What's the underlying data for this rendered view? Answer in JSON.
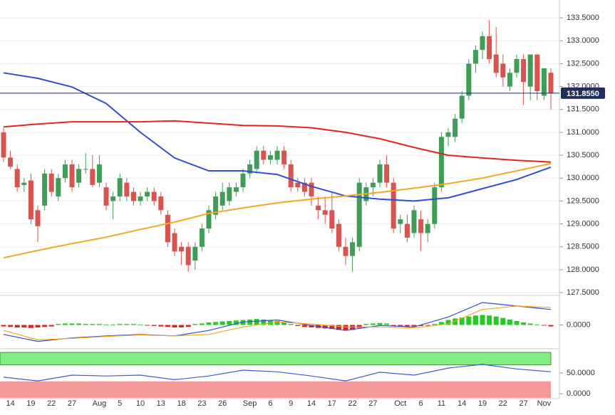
{
  "chart_data": {
    "type": "candlestick",
    "categories": [
      null,
      "14",
      null,
      null,
      "19",
      null,
      null,
      "22",
      null,
      null,
      "27",
      null,
      null,
      null,
      "Aug",
      null,
      null,
      "5",
      null,
      null,
      "10",
      null,
      null,
      "13",
      null,
      null,
      "18",
      null,
      null,
      "23",
      null,
      null,
      "26",
      null,
      null,
      null,
      "Sep",
      null,
      null,
      "6",
      null,
      null,
      "9",
      null,
      null,
      "14",
      null,
      null,
      "17",
      null,
      null,
      "22",
      null,
      null,
      "27",
      null,
      null,
      null,
      "Oct",
      null,
      null,
      "6",
      null,
      null,
      "11",
      null,
      null,
      "14",
      null,
      null,
      "19",
      null,
      null,
      "22",
      null,
      null,
      "27",
      null,
      null,
      "Nov",
      null
    ],
    "ohlc": [
      [
        131.0,
        131.1,
        130.35,
        130.45
      ],
      [
        130.45,
        130.6,
        130.2,
        130.25
      ],
      [
        130.2,
        130.3,
        129.7,
        129.8
      ],
      [
        129.85,
        130.0,
        129.7,
        129.9
      ],
      [
        129.95,
        130.1,
        129.0,
        129.1
      ],
      [
        129.3,
        129.4,
        128.6,
        128.95
      ],
      [
        129.4,
        130.2,
        129.3,
        130.1
      ],
      [
        130.1,
        130.2,
        129.6,
        129.7
      ],
      [
        129.6,
        130.1,
        129.5,
        130.0
      ],
      [
        130.0,
        130.4,
        129.9,
        130.3
      ],
      [
        130.3,
        130.4,
        129.7,
        129.8
      ],
      [
        129.9,
        130.3,
        129.8,
        130.2
      ],
      [
        130.2,
        130.55,
        130.1,
        130.2
      ],
      [
        130.2,
        130.5,
        129.8,
        129.85
      ],
      [
        129.9,
        130.5,
        129.8,
        130.3
      ],
      [
        129.8,
        129.9,
        129.3,
        129.4
      ],
      [
        129.5,
        129.7,
        129.1,
        129.6
      ],
      [
        129.6,
        130.1,
        129.5,
        130.0
      ],
      [
        129.9,
        130.0,
        129.5,
        129.6
      ],
      [
        129.7,
        129.8,
        129.4,
        129.5
      ],
      [
        129.5,
        129.7,
        129.4,
        129.6
      ],
      [
        129.6,
        129.8,
        129.5,
        129.7
      ],
      [
        129.7,
        129.8,
        129.4,
        129.5
      ],
      [
        129.6,
        129.7,
        129.2,
        129.3
      ],
      [
        129.2,
        129.3,
        128.5,
        128.6
      ],
      [
        128.8,
        128.9,
        128.3,
        128.4
      ],
      [
        128.5,
        128.6,
        128.1,
        128.4
      ],
      [
        128.5,
        128.6,
        127.95,
        128.1
      ],
      [
        128.2,
        128.6,
        128.0,
        128.5
      ],
      [
        128.5,
        129.0,
        128.4,
        128.9
      ],
      [
        128.9,
        129.4,
        128.8,
        129.3
      ],
      [
        129.2,
        129.7,
        129.1,
        129.6
      ],
      [
        129.4,
        129.9,
        129.3,
        129.7
      ],
      [
        129.5,
        129.9,
        129.4,
        129.8
      ],
      [
        129.7,
        129.9,
        129.6,
        129.8
      ],
      [
        129.8,
        130.2,
        129.7,
        130.1
      ],
      [
        130.1,
        130.4,
        130.0,
        130.3
      ],
      [
        130.2,
        130.7,
        130.1,
        130.6
      ],
      [
        130.6,
        130.7,
        130.3,
        130.4
      ],
      [
        130.4,
        130.6,
        130.3,
        130.5
      ],
      [
        130.4,
        130.7,
        130.3,
        130.6
      ],
      [
        130.6,
        130.7,
        130.2,
        130.3
      ],
      [
        130.3,
        130.4,
        129.7,
        129.8
      ],
      [
        129.9,
        130.0,
        129.7,
        129.8
      ],
      [
        129.9,
        130.0,
        129.6,
        129.7
      ],
      [
        129.9,
        130.0,
        129.4,
        129.6
      ],
      [
        129.4,
        129.6,
        129.1,
        129.3
      ],
      [
        129.3,
        129.6,
        129.0,
        129.2
      ],
      [
        129.3,
        129.7,
        128.8,
        128.9
      ],
      [
        129.0,
        129.1,
        128.4,
        128.5
      ],
      [
        128.5,
        128.7,
        128.1,
        128.3
      ],
      [
        128.3,
        128.7,
        127.95,
        128.6
      ],
      [
        128.5,
        130.0,
        128.4,
        129.9
      ],
      [
        129.5,
        129.9,
        129.4,
        129.8
      ],
      [
        129.8,
        130.0,
        129.6,
        129.9
      ],
      [
        129.9,
        130.4,
        129.8,
        130.3
      ],
      [
        130.3,
        130.5,
        129.8,
        129.9
      ],
      [
        129.9,
        130.0,
        128.8,
        128.9
      ],
      [
        129.0,
        129.2,
        128.8,
        129.1
      ],
      [
        129.0,
        129.2,
        128.6,
        128.7
      ],
      [
        128.8,
        129.4,
        128.7,
        129.3
      ],
      [
        129.1,
        129.3,
        128.4,
        128.8
      ],
      [
        128.8,
        129.1,
        128.6,
        129.0
      ],
      [
        129.0,
        129.9,
        128.9,
        129.8
      ],
      [
        129.8,
        131.0,
        129.7,
        130.9
      ],
      [
        130.9,
        131.1,
        130.7,
        131.0
      ],
      [
        130.9,
        131.4,
        130.8,
        131.3
      ],
      [
        131.3,
        131.9,
        131.2,
        131.8
      ],
      [
        131.8,
        132.6,
        131.7,
        132.5
      ],
      [
        132.5,
        132.9,
        132.3,
        132.8
      ],
      [
        132.8,
        133.2,
        132.6,
        133.1
      ],
      [
        133.1,
        133.45,
        132.5,
        132.6
      ],
      [
        132.7,
        133.3,
        132.2,
        132.3
      ],
      [
        132.5,
        132.7,
        132.0,
        132.2
      ],
      [
        132.0,
        132.4,
        131.9,
        132.3
      ],
      [
        132.3,
        132.7,
        132.2,
        132.6
      ],
      [
        132.6,
        132.7,
        131.6,
        132.1
      ],
      [
        132.0,
        132.7,
        131.7,
        132.7
      ],
      [
        132.7,
        132.7,
        131.7,
        131.9
      ],
      [
        131.8,
        132.4,
        131.7,
        132.4
      ],
      [
        132.3,
        132.4,
        131.5,
        131.86
      ]
    ],
    "colors": {
      "up": "#3f9d58",
      "down": "#d9534f"
    },
    "ylim": [
      127.47,
      133.89
    ],
    "yticks": [
      {
        "value": 127.5,
        "label": "127.5000"
      },
      {
        "value": 128,
        "label": "128.0000"
      },
      {
        "value": 128.5,
        "label": "128.5000"
      },
      {
        "value": 129,
        "label": "129.0000"
      },
      {
        "value": 129.5,
        "label": "129.5000"
      },
      {
        "value": 130,
        "label": "130.0000"
      },
      {
        "value": 130.5,
        "label": "130.5000"
      },
      {
        "value": 131,
        "label": "131.0000"
      },
      {
        "value": 131.5,
        "label": "131.5000"
      },
      {
        "value": 132,
        "label": "132.0000"
      },
      {
        "value": 132.5,
        "label": "132.5000"
      },
      {
        "value": 133,
        "label": "133.0000"
      },
      {
        "value": 133.5,
        "label": "133.5000"
      }
    ],
    "grid": true,
    "last_price": {
      "value": 131.855,
      "label": "131.8550"
    },
    "ma_x": [
      0,
      5,
      10,
      15,
      20,
      25,
      30,
      35,
      40,
      45,
      50,
      55,
      60,
      65,
      70,
      75,
      80
    ],
    "moving_averages": [
      {
        "color": "#2f4fd6",
        "values": [
          132.3,
          132.18,
          131.99,
          131.63,
          131.0,
          130.44,
          130.16,
          130.16,
          130.08,
          129.82,
          129.61,
          129.54,
          129.5,
          129.57,
          129.77,
          129.97,
          130.24
        ]
      },
      {
        "color": "#e8231f",
        "values": [
          131.12,
          131.18,
          131.23,
          131.23,
          131.23,
          131.25,
          131.2,
          131.15,
          131.14,
          131.1,
          131.0,
          130.86,
          130.67,
          130.5,
          130.44,
          130.39,
          130.35
        ]
      },
      {
        "color": "#f5a623",
        "values": [
          128.26,
          128.42,
          128.57,
          128.71,
          128.88,
          129.04,
          129.23,
          129.35,
          129.46,
          129.54,
          129.61,
          129.69,
          129.78,
          129.88,
          130.0,
          130.16,
          130.32
        ]
      }
    ],
    "macd": {
      "histogram": [
        -0.03,
        -0.04,
        -0.05,
        -0.05,
        -0.06,
        -0.05,
        -0.04,
        -0.03,
        0.02,
        0.03,
        0.03,
        0.03,
        0.02,
        0.02,
        0.02,
        0.01,
        0.01,
        0.02,
        0.02,
        0.02,
        0.01,
        -0.01,
        -0.02,
        -0.03,
        -0.04,
        -0.05,
        -0.05,
        -0.04,
        0.02,
        0.03,
        0.05,
        0.06,
        0.07,
        0.08,
        0.09,
        0.1,
        0.11,
        0.12,
        0.11,
        0.1,
        0.08,
        0.05,
        0.02,
        -0.02,
        -0.04,
        -0.05,
        -0.06,
        -0.07,
        -0.08,
        -0.1,
        -0.11,
        -0.1,
        -0.06,
        0.02,
        0.03,
        0.04,
        0.03,
        -0.02,
        -0.03,
        -0.03,
        -0.03,
        -0.02,
        -0.01,
        0.02,
        0.06,
        0.1,
        0.13,
        0.15,
        0.17,
        0.19,
        0.2,
        0.19,
        0.17,
        0.14,
        0.11,
        0.08,
        0.05,
        0.03,
        0.01,
        -0.01,
        -0.03
      ],
      "up_color": "#22cc22",
      "down_color": "#dd2222",
      "lines": [
        {
          "color": "#2f4fd6",
          "values": [
            -0.19,
            -0.33,
            -0.26,
            -0.22,
            -0.19,
            -0.22,
            -0.11,
            0.06,
            0.1,
            -0.01,
            -0.11,
            -0.01,
            -0.04,
            0.16,
            0.45,
            0.38,
            0.31
          ]
        },
        {
          "color": "#f5a623",
          "values": [
            -0.11,
            -0.3,
            -0.27,
            -0.23,
            -0.2,
            -0.22,
            -0.19,
            -0.04,
            0.06,
            0.02,
            -0.04,
            -0.04,
            -0.06,
            0.02,
            0.31,
            0.38,
            0.35
          ]
        }
      ],
      "ylim": [
        -0.45,
        0.55
      ],
      "yticks": [
        {
          "value": 0,
          "label": "0.0000"
        }
      ]
    },
    "rsi": {
      "color": "#3b5bdb",
      "values": [
        40,
        31,
        45,
        43,
        45,
        34,
        43,
        57,
        53,
        43,
        31,
        52,
        45,
        62,
        71,
        60,
        53
      ],
      "ylim": [
        -10,
        100
      ],
      "yticks": [
        {
          "value": 50,
          "label": "50.0000"
        },
        {
          "value": 0,
          "label": "0.0000"
        }
      ],
      "bands": [
        {
          "from": 70,
          "to": 100,
          "color": "#84ec84"
        },
        {
          "from": -10,
          "to": 30,
          "color": "#f59a9a"
        }
      ]
    }
  }
}
